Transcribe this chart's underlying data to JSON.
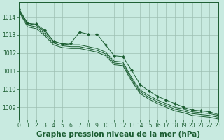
{
  "title": "Graphe pression niveau de la mer (hPa)",
  "background_color": "#c8eae0",
  "grid_color": "#9dbfb3",
  "line_color": "#1a5c30",
  "xlim": [
    0,
    23
  ],
  "ylim": [
    1008.3,
    1014.8
  ],
  "yticks": [
    1009,
    1010,
    1011,
    1012,
    1013,
    1014
  ],
  "xticks": [
    0,
    1,
    2,
    3,
    4,
    5,
    6,
    7,
    8,
    9,
    10,
    11,
    12,
    13,
    14,
    15,
    16,
    17,
    18,
    19,
    20,
    21,
    22,
    23
  ],
  "series_plain": [
    [
      1014.4,
      1013.65,
      1013.55,
      1013.15,
      1012.65,
      1012.5,
      1012.45,
      1012.45,
      1012.35,
      1012.25,
      1012.05,
      1011.55,
      1011.5,
      1010.65,
      1009.95,
      1009.65,
      1009.4,
      1009.2,
      1009.0,
      1008.9,
      1008.75,
      1008.7,
      1008.65,
      1008.55
    ],
    [
      1014.35,
      1013.55,
      1013.45,
      1013.05,
      1012.55,
      1012.4,
      1012.35,
      1012.35,
      1012.25,
      1012.15,
      1011.95,
      1011.45,
      1011.4,
      1010.55,
      1009.85,
      1009.55,
      1009.3,
      1009.1,
      1008.9,
      1008.8,
      1008.65,
      1008.6,
      1008.55,
      1008.45
    ],
    [
      1014.3,
      1013.45,
      1013.35,
      1012.95,
      1012.45,
      1012.3,
      1012.25,
      1012.25,
      1012.15,
      1012.05,
      1011.85,
      1011.35,
      1011.3,
      1010.45,
      1009.75,
      1009.45,
      1009.2,
      1009.0,
      1008.8,
      1008.7,
      1008.55,
      1008.5,
      1008.45,
      1008.35
    ]
  ],
  "series_marker": [
    1014.45,
    1013.65,
    1013.6,
    1013.25,
    1012.65,
    1012.5,
    1012.55,
    1013.15,
    1013.05,
    1013.05,
    1012.45,
    1011.85,
    1011.8,
    1011.05,
    1010.25,
    1009.9,
    1009.6,
    1009.4,
    1009.2,
    1009.0,
    1008.85,
    1008.8,
    1008.75,
    1008.6
  ],
  "title_fontsize": 7.5,
  "tick_fontsize": 5.5
}
